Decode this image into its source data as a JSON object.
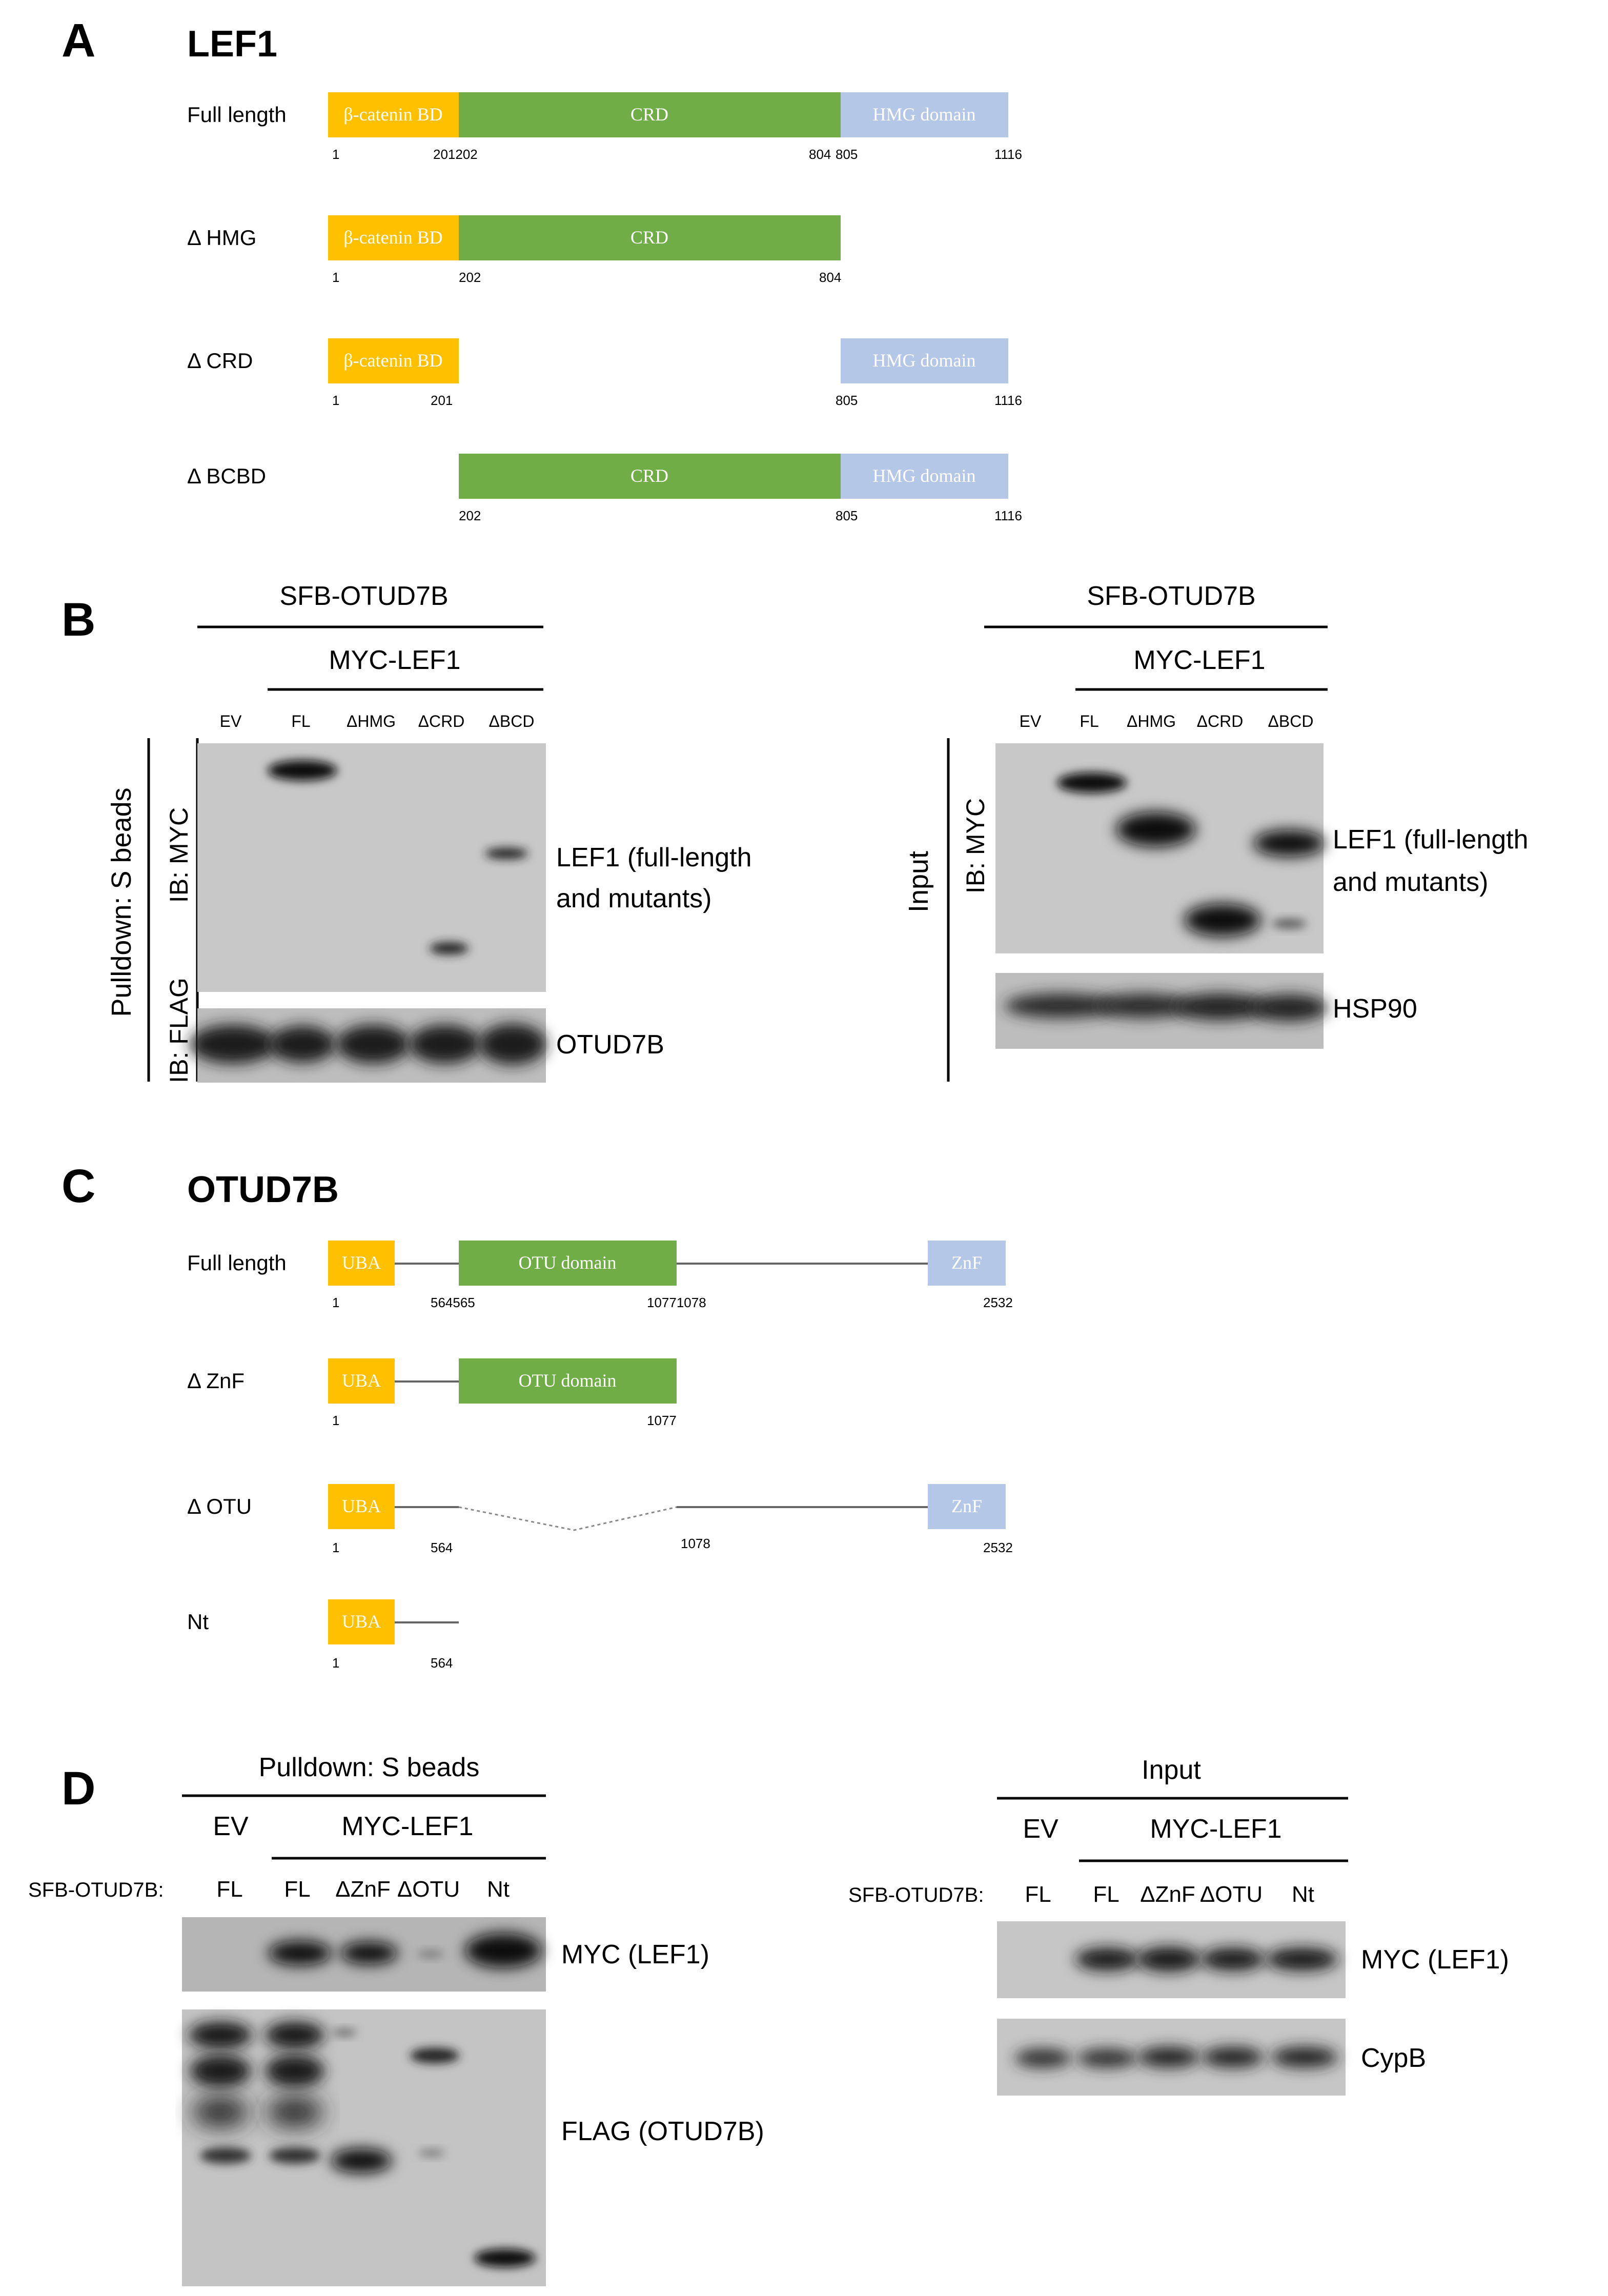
{
  "panel_a": {
    "letter": "A",
    "title": "LEF1",
    "colors": {
      "bcbd": "#FFC000",
      "crd": "#70AD47",
      "hmg": "#B4C7E7"
    },
    "constructs": [
      {
        "label": "Full length",
        "domains": [
          "β-catenin BD",
          "CRD",
          "HMG domain"
        ],
        "ticks": [
          "1",
          "201202",
          "804",
          "805",
          "1116"
        ]
      },
      {
        "label": "Δ HMG",
        "domains": [
          "β-catenin BD",
          "CRD"
        ],
        "ticks": [
          "1",
          "202",
          "804"
        ]
      },
      {
        "label": "Δ CRD",
        "domains": [
          "β-catenin BD",
          "HMG domain"
        ],
        "ticks": [
          "1",
          "201",
          "805",
          "1116"
        ]
      },
      {
        "label": "Δ BCBD",
        "domains": [
          "CRD",
          "HMG domain"
        ],
        "ticks": [
          "202",
          "805",
          "1116"
        ]
      }
    ]
  },
  "panel_b": {
    "letter": "B",
    "left": {
      "top_header": "SFB-OTUD7B",
      "sub_header": "MYC-LEF1",
      "lanes": [
        "EV",
        "FL",
        "ΔHMG",
        "ΔCRD",
        "ΔBCD"
      ],
      "side_label": "Pulldown: S beads",
      "ib_myc": "IB: MYC",
      "ib_flag": "IB: FLAG",
      "band_label_1a": "LEF1 (full-length",
      "band_label_1b": "and mutants)",
      "band_label_2": "OTUD7B"
    },
    "right": {
      "top_header": "SFB-OTUD7B",
      "sub_header": "MYC-LEF1",
      "lanes": [
        "EV",
        "FL",
        "ΔHMG",
        "ΔCRD",
        "ΔBCD"
      ],
      "side_label": "Input",
      "ib_myc": "IB: MYC",
      "band_label_1a": "LEF1 (full-length",
      "band_label_1b": "and mutants)",
      "band_label_2": "HSP90"
    }
  },
  "panel_c": {
    "letter": "C",
    "title": "OTUD7B",
    "colors": {
      "uba": "#FFC000",
      "otu": "#70AD47",
      "znf": "#B4C7E7"
    },
    "constructs": [
      {
        "label": "Full length",
        "domains": [
          "UBA",
          "OTU domain",
          "ZnF"
        ],
        "ticks": [
          "1",
          "564565",
          "10771078",
          "2532"
        ]
      },
      {
        "label": "Δ ZnF",
        "domains": [
          "UBA",
          "OTU domain"
        ],
        "ticks": [
          "1",
          "1077"
        ]
      },
      {
        "label": "Δ OTU",
        "domains": [
          "UBA",
          "ZnF"
        ],
        "ticks": [
          "1",
          "564",
          "1078",
          "2532"
        ]
      },
      {
        "label": "Nt",
        "domains": [
          "UBA"
        ],
        "ticks": [
          "1",
          "564"
        ]
      }
    ]
  },
  "panel_d": {
    "letter": "D",
    "left": {
      "top_header": "Pulldown: S beads",
      "ev": "EV",
      "sub_header": "MYC-LEF1",
      "row_label": "SFB-OTUD7B:",
      "lanes": [
        "FL",
        "FL",
        "ΔZnF",
        "ΔOTU",
        "Nt"
      ],
      "band_label_1": "MYC (LEF1)",
      "band_label_2": "FLAG (OTUD7B)"
    },
    "right": {
      "top_header": "Input",
      "ev": "EV",
      "sub_header": "MYC-LEF1",
      "row_label": "SFB-OTUD7B:",
      "lanes": [
        "FL",
        "FL",
        "ΔZnF",
        "ΔOTU",
        "Nt"
      ],
      "band_label_1": "MYC (LEF1)",
      "band_label_2": "CypB"
    }
  }
}
